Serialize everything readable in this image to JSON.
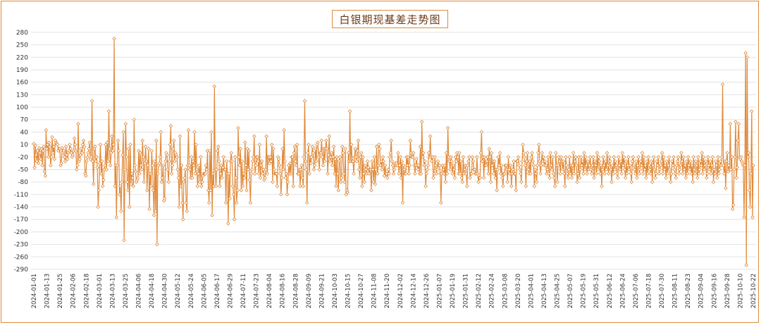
{
  "chart_data": {
    "type": "line",
    "title": "白银期现基差走势图",
    "xlabel": "",
    "ylabel": "",
    "ylim": [
      -290,
      290
    ],
    "yticks": [
      280,
      250,
      220,
      190,
      160,
      130,
      100,
      70,
      40,
      10,
      -20,
      -50,
      -80,
      -110,
      -140,
      -170,
      -200,
      -230,
      -260,
      -290
    ],
    "xticks": [
      "2024-01-01",
      "2024-01-13",
      "2024-01-25",
      "2024-02-06",
      "2024-02-18",
      "2024-03-01",
      "2024-03-13",
      "2024-03-25",
      "2024-04-06",
      "2024-04-18",
      "2024-04-30",
      "2024-05-12",
      "2024-05-24",
      "2024-06-05",
      "2024-06-17",
      "2024-06-29",
      "2024-07-11",
      "2024-07-23",
      "2024-08-04",
      "2024-08-16",
      "2024-08-28",
      "2024-09-09",
      "2024-09-21",
      "2024-10-03",
      "2024-10-15",
      "2024-10-27",
      "2024-11-08",
      "2024-11-20",
      "2024-12-02",
      "2024-12-14",
      "2024-12-26",
      "2025-01-07",
      "2025-01-19",
      "2025-01-31",
      "2025-02-12",
      "2025-02-24",
      "2025-03-08",
      "2025-03-20",
      "2025-04-01",
      "2025-04-13",
      "2025-04-25",
      "2025-05-07",
      "2025-05-19",
      "2025-05-31",
      "2025-06-12",
      "2025-06-24",
      "2025-07-06",
      "2025-07-18",
      "2025-07-30",
      "2025-08-11",
      "2025-08-23",
      "2025-09-04",
      "2025-09-16",
      "2025-09-28",
      "2025-10-10",
      "2025-10-22"
    ],
    "grid": true,
    "legend": "none",
    "line_color": "#e08a3a",
    "marker": "diamond",
    "series": [
      {
        "values": [
          12,
          -45,
          8,
          -15,
          -30,
          -5,
          -35,
          2,
          -10,
          -25,
          0,
          -40,
          -5,
          5,
          -55,
          -65,
          45,
          0,
          10,
          -20,
          15,
          5,
          -40,
          -20,
          28,
          -10,
          5,
          -25,
          20,
          15,
          12,
          10,
          -5,
          0,
          0,
          -40,
          -35,
          2,
          -10,
          -5,
          -20,
          -30,
          5,
          -15,
          -25,
          -10,
          -5,
          10,
          0,
          -10,
          -20,
          -15,
          -5,
          25,
          10,
          -5,
          -50,
          -40,
          60,
          -30,
          -25,
          -15,
          0,
          -10,
          10,
          20,
          5,
          -60,
          -65,
          -30,
          -20,
          -10,
          0,
          15,
          -25,
          -20,
          115,
          -30,
          -85,
          0,
          5,
          -30,
          -20,
          -45,
          -140,
          -100,
          -35,
          10,
          -60,
          -30,
          -90,
          -75,
          -50,
          -40,
          10,
          -50,
          15,
          -30,
          90,
          0,
          -40,
          -10,
          30,
          -5,
          10,
          265,
          -90,
          -40,
          -165,
          -40,
          20,
          -5,
          -110,
          -90,
          -150,
          -80,
          -15,
          40,
          -220,
          -50,
          60,
          -20,
          -80,
          -100,
          0,
          -140,
          10,
          -85,
          -60,
          -70,
          -90,
          70,
          -40,
          -55,
          -80,
          -75,
          -70,
          -5,
          -60,
          -10,
          -40,
          -50,
          20,
          -20,
          -80,
          -35,
          5,
          -30,
          -100,
          -40,
          0,
          -145,
          -60,
          -90,
          -5,
          -40,
          -100,
          -160,
          -30,
          -150,
          20,
          -230,
          -60,
          -40,
          -35,
          -20,
          40,
          -80,
          -70,
          -40,
          -125,
          -120,
          -30,
          -10,
          -15,
          -50,
          -80,
          -30,
          10,
          55,
          -60,
          -40,
          0,
          20,
          -30,
          -10,
          -15,
          -20,
          -50,
          -70,
          -140,
          30,
          -90,
          -40,
          -130,
          -170,
          -80,
          -70,
          -50,
          -130,
          -150,
          -40,
          45,
          -40,
          -50,
          -70,
          -20,
          -70,
          -30,
          -40,
          40,
          -60,
          10,
          -50,
          -90,
          -60,
          -40,
          -80,
          -20,
          -90,
          -80,
          -65,
          -60,
          -60,
          -60,
          -40,
          -50,
          -5,
          -100,
          -130,
          -5,
          -100,
          40,
          -160,
          -60,
          -90,
          150,
          -50,
          -90,
          -50,
          -5,
          5,
          -30,
          -90,
          -60,
          -40,
          -70,
          -45,
          -20,
          -50,
          -50,
          -130,
          -30,
          -60,
          -180,
          -60,
          -120,
          -30,
          -10,
          -30,
          -90,
          -110,
          -170,
          -20,
          -70,
          -130,
          -100,
          50,
          -20,
          -40,
          0,
          -100,
          -30,
          -90,
          -60,
          -70,
          15,
          -40,
          -100,
          0,
          -50,
          -5,
          -75,
          -130,
          -60,
          -50,
          -30,
          -20,
          30,
          -60,
          -40,
          -20,
          -20,
          -30,
          -60,
          10,
          -70,
          -40,
          -30,
          -60,
          -50,
          -75,
          -70,
          -50,
          30,
          -60,
          -20,
          -20,
          -35,
          -20,
          -30,
          10,
          -80,
          0,
          -50,
          -60,
          -60,
          -60,
          -90,
          -20,
          -25,
          -40,
          -60,
          -110,
          -70,
          0,
          -50,
          45,
          -30,
          -70,
          -60,
          -110,
          -80,
          -40,
          -60,
          -35,
          -60,
          -20,
          -20,
          -90,
          -10,
          5,
          -30,
          -40,
          10,
          -60,
          -60,
          -50,
          -90,
          -50,
          -40,
          -70,
          -90,
          -20,
          115,
          -30,
          -50,
          -130,
          -10,
          10,
          -60,
          -20,
          -35,
          -20,
          5,
          -10,
          -50,
          -40,
          0,
          -30,
          10,
          15,
          -20,
          -50,
          -10,
          -10,
          20,
          -20,
          -40,
          0,
          -30,
          0,
          20,
          0,
          -60,
          -15,
          30,
          -30,
          -20,
          -10,
          -40,
          -20,
          5,
          -60,
          -25,
          -90,
          -20,
          -60,
          -100,
          -30,
          -20,
          -80,
          -70,
          5,
          -10,
          -60,
          -80,
          0,
          -110,
          -100,
          -105,
          -10,
          -30,
          90,
          -30,
          10,
          -30,
          -30,
          -60,
          -20,
          0,
          -20,
          -30,
          -5,
          20,
          -50,
          -70,
          -20,
          -10,
          -90,
          -20,
          -60,
          -80,
          -40,
          -50,
          -60,
          -30,
          -45,
          -60,
          -50,
          -50,
          -100,
          -30,
          -50,
          -80,
          -20,
          -85,
          -50,
          5,
          -60,
          -40,
          10,
          0,
          -40,
          -30,
          -50,
          -20,
          -30,
          -65,
          -40,
          -60,
          -60,
          -70,
          -50,
          -60,
          -20,
          -10,
          20,
          -30,
          -40,
          -60,
          -50,
          -35,
          -40,
          -35,
          -40,
          -10,
          -60,
          -40,
          -20,
          -70,
          -30,
          -130,
          -40,
          -50,
          -60,
          -60,
          -20,
          -40,
          -20,
          -60,
          -40,
          20,
          -10,
          -20,
          -20,
          -10,
          -40,
          -60,
          -40,
          -25,
          -40,
          -50,
          -40,
          -60,
          5,
          -60,
          65,
          -20,
          -10,
          -40,
          -30,
          -90,
          -60,
          -50,
          -40,
          -10,
          -20,
          30,
          -20,
          -30,
          -20,
          -70,
          -60,
          -20,
          -40,
          -60,
          -50,
          -30,
          -40,
          -40,
          -60,
          -130,
          -60,
          -40,
          -50,
          -60,
          -40,
          -80,
          -10,
          -60,
          50,
          -20,
          -30,
          -50,
          -20,
          -30,
          -60,
          -40,
          -50,
          -70,
          -20,
          -30,
          -10,
          -20,
          -60,
          -10,
          -60,
          -30,
          -70,
          -80,
          -20,
          -60,
          -50,
          -40,
          -60,
          -90,
          -40,
          -30,
          -20,
          -70,
          -60,
          -60,
          -20,
          -30,
          -50,
          -50,
          -60,
          -60,
          -20,
          -60,
          -80,
          -70,
          -70,
          -10,
          40,
          -30,
          -20,
          -70,
          -20,
          -40,
          -40,
          -30,
          -20,
          -60,
          0,
          -20,
          -80,
          -10,
          -40,
          -30,
          -60,
          -30,
          -70,
          -50,
          -100,
          -50,
          -20,
          -40,
          -10,
          -60,
          -40,
          -70,
          -90,
          -60,
          -60,
          -40,
          -40,
          -50,
          -80,
          -20,
          -50,
          -60,
          -40,
          -90,
          -60,
          -50,
          -30,
          -60,
          -60,
          -100,
          -30,
          -30,
          -20,
          -40,
          -50,
          -60,
          -80,
          -30,
          10,
          -10,
          -20,
          -40,
          -90,
          -30,
          -10,
          -50,
          -60,
          -30,
          -60,
          -20,
          -10,
          -30,
          -40,
          -90,
          -50,
          -60,
          -80,
          -40,
          -10,
          10,
          -30,
          -60,
          -40,
          -10,
          -30,
          -20,
          -40,
          -30,
          -40,
          -60,
          -50,
          -20,
          -60,
          -70,
          -10,
          -40,
          -50,
          -20,
          -60,
          -70,
          -90,
          -10,
          -40,
          -80,
          -40,
          -20,
          -30,
          -60,
          -20,
          -30,
          -50,
          -30,
          -60,
          -90,
          -20,
          -40,
          -60,
          -70,
          -50,
          -20,
          -60,
          -40,
          -70,
          -40,
          -10,
          -60,
          -30,
          -20,
          -40,
          -80,
          -60,
          -20,
          -70,
          -50,
          -20,
          -40,
          -30,
          -60,
          -10,
          -50,
          -20,
          -40,
          -60,
          -30,
          -50,
          -40,
          -20,
          -50,
          -60,
          -40,
          -20,
          -70,
          -30,
          -40,
          -60,
          -10,
          -50,
          -20,
          -30,
          -60,
          -40,
          -90,
          -50,
          -20,
          -40,
          -60,
          -30,
          -50,
          -10,
          -40,
          -60,
          -20,
          -30,
          -50,
          -80,
          -40,
          -60,
          -20,
          -50,
          -30,
          -40,
          -60,
          -70,
          -20,
          -40,
          -50,
          -30,
          -60,
          -10,
          -40,
          -20,
          -50,
          -70,
          -30,
          -60,
          -40,
          -20,
          -50,
          -40,
          -60,
          -80,
          -30,
          -20,
          -40,
          -50,
          -60,
          -30,
          -70,
          -40,
          -20,
          -60,
          -50,
          -30,
          -40,
          -10,
          -60,
          -20,
          -50,
          -40,
          -70,
          -30,
          -60,
          -20,
          -40,
          -50,
          -60,
          -30,
          -80,
          -40,
          -20,
          -50,
          -70,
          -60,
          -30,
          -40,
          -20,
          -60,
          -50,
          -40,
          -30,
          -10,
          -60,
          -20,
          -50,
          -40,
          -70,
          -30,
          -60,
          -40,
          -20,
          -50,
          -80,
          -60,
          -30,
          -40,
          -20,
          -50,
          -60,
          -70,
          -40,
          -30,
          -20,
          -60,
          -50,
          -40,
          -10,
          -30,
          -60,
          -20,
          -50,
          -40,
          -70,
          -30,
          -60,
          -20,
          -40,
          -50,
          -30,
          -60,
          -40,
          -80,
          -20,
          -50,
          -60,
          -30,
          -40,
          -70,
          -20,
          -60,
          -50,
          -30,
          -40,
          -10,
          -60,
          -20,
          -50,
          -40,
          -30,
          -70,
          -60,
          -20,
          -40,
          -50,
          -30,
          -60,
          -40,
          -20,
          -80,
          -50,
          -60,
          -30,
          -40,
          -70,
          -20,
          -60,
          -50,
          -30,
          -40,
          -20,
          155,
          -40,
          -60,
          -30,
          -95,
          -30,
          -10,
          -55,
          -40,
          -50,
          60,
          -50,
          -20,
          -145,
          -135,
          -50,
          -20,
          65,
          -70,
          -45,
          20,
          60,
          -20,
          -25,
          -20,
          -30,
          -35,
          -40,
          -165,
          -40,
          230,
          -280,
          220,
          -20,
          -10,
          -100,
          -140,
          -60,
          90,
          -165,
          -40
        ]
      }
    ]
  }
}
